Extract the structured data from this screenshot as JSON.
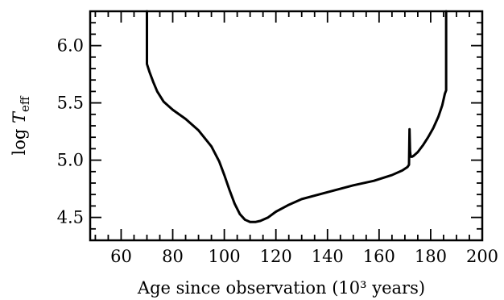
{
  "chart_data": {
    "type": "line",
    "title": "",
    "xlabel": "Age since observation (10³ years)",
    "ylabel": "log T_eff",
    "ylabel_parts": {
      "prefix": "log ",
      "symbol": "T",
      "subscript": "eff"
    },
    "xlim": [
      48,
      200
    ],
    "ylim": [
      4.3,
      6.3
    ],
    "x_ticks": [
      60,
      80,
      100,
      120,
      140,
      160,
      180,
      200
    ],
    "y_ticks": [
      4.5,
      5.0,
      5.5,
      6.0
    ],
    "x_tick_labels": [
      "60",
      "80",
      "100",
      "120",
      "140",
      "160",
      "180",
      "200"
    ],
    "y_tick_labels": [
      "4.5",
      "5.0",
      "5.5",
      "6.0"
    ],
    "x_minor_step": 5,
    "y_minor_step": 0.1,
    "grid": false,
    "series": [
      {
        "x": [
          70.0,
          70.0,
          71.0,
          72.5,
          74.0,
          76.5,
          80.0,
          85.0,
          90.0,
          95.0,
          98.0,
          100.0,
          102.0,
          104.0,
          106.0,
          108.0,
          110.0,
          112.0,
          114.0,
          117.0,
          120.0,
          125.0,
          130.0,
          140.0,
          150.0,
          158.0,
          165.0,
          169.0,
          171.0,
          171.6,
          171.8,
          172.0,
          172.2,
          172.4,
          172.8,
          173.5,
          175.0,
          177.0,
          179.0,
          181.0,
          183.0,
          184.5,
          185.5,
          186.0,
          186.0
        ],
        "y": [
          6.3,
          5.84,
          5.77,
          5.68,
          5.6,
          5.51,
          5.44,
          5.36,
          5.26,
          5.12,
          4.99,
          4.87,
          4.74,
          4.62,
          4.53,
          4.48,
          4.46,
          4.46,
          4.47,
          4.5,
          4.55,
          4.61,
          4.66,
          4.72,
          4.78,
          4.82,
          4.87,
          4.91,
          4.94,
          4.96,
          5.27,
          5.08,
          5.04,
          5.03,
          5.03,
          5.04,
          5.07,
          5.13,
          5.2,
          5.28,
          5.38,
          5.48,
          5.58,
          5.61,
          6.3
        ]
      }
    ]
  }
}
